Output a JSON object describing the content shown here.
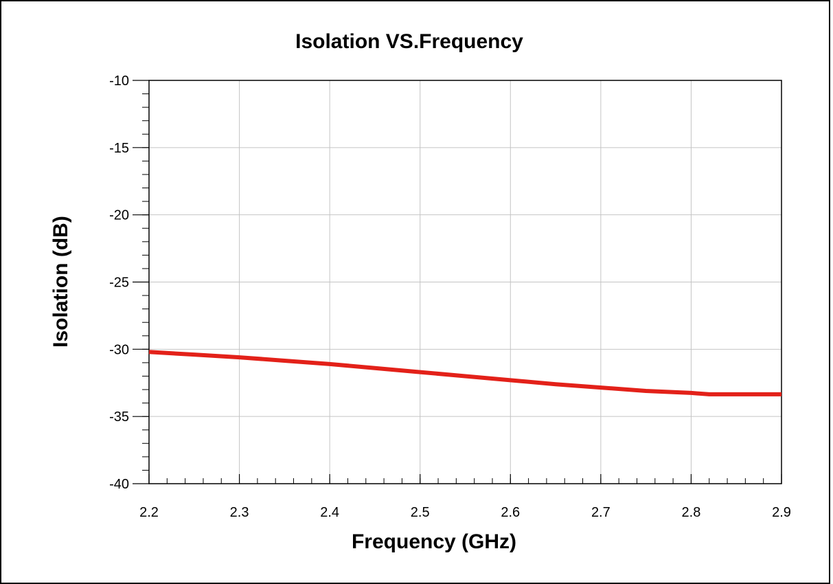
{
  "chart_data": {
    "type": "line",
    "title": "Isolation VS.Frequency",
    "xlabel": "Frequency (GHz)",
    "ylabel": "Isolation (dB)",
    "xlim": [
      2.2,
      2.9
    ],
    "ylim": [
      -40,
      -10
    ],
    "xticks": [
      "2.2",
      "2.3",
      "2.4",
      "2.5",
      "2.6",
      "2.7",
      "2.8",
      "2.9"
    ],
    "yticks": [
      "-10",
      "-15",
      "-20",
      "-25",
      "-30",
      "-35",
      "-40"
    ],
    "grid": true,
    "legend": "none",
    "series": [
      {
        "color": "#e32119",
        "x": [
          2.2,
          2.25,
          2.3,
          2.35,
          2.4,
          2.45,
          2.5,
          2.55,
          2.6,
          2.65,
          2.7,
          2.75,
          2.8,
          2.82,
          2.85,
          2.9
        ],
        "y": [
          -30.2,
          -30.4,
          -30.6,
          -30.85,
          -31.1,
          -31.4,
          -31.7,
          -32.0,
          -32.3,
          -32.6,
          -32.85,
          -33.1,
          -33.25,
          -33.35,
          -33.35,
          -33.35
        ]
      }
    ]
  }
}
